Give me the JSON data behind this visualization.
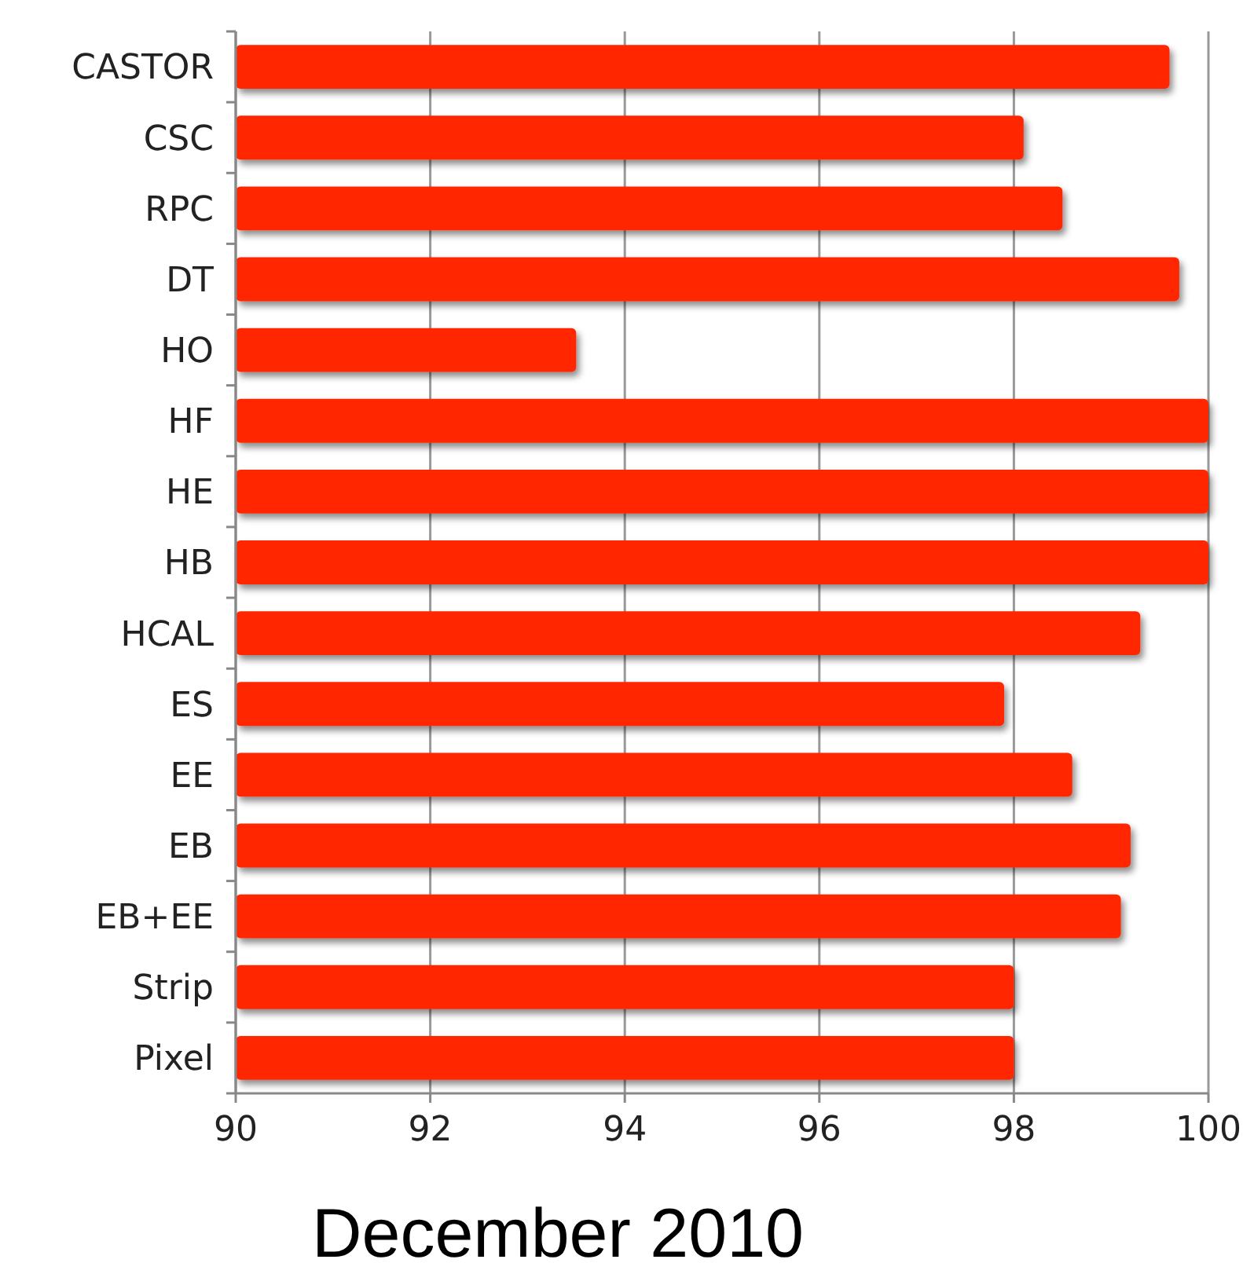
{
  "chart_data": {
    "type": "bar",
    "orientation": "horizontal",
    "xlabel": "December 2010",
    "categories": [
      "CASTOR",
      "CSC",
      "RPC",
      "DT",
      "HO",
      "HF",
      "HE",
      "HB",
      "HCAL",
      "ES",
      "EE",
      "EB",
      "EB+EE",
      "Strip",
      "Pixel"
    ],
    "values": [
      99.6,
      98.1,
      98.5,
      99.7,
      93.5,
      100,
      100,
      100,
      99.3,
      97.9,
      98.6,
      99.2,
      99.1,
      98.0,
      98.0
    ],
    "color": "#ff2600",
    "xlim": [
      90,
      100
    ],
    "xticks": [
      90,
      92,
      94,
      96,
      98,
      100
    ],
    "grid": "x"
  }
}
